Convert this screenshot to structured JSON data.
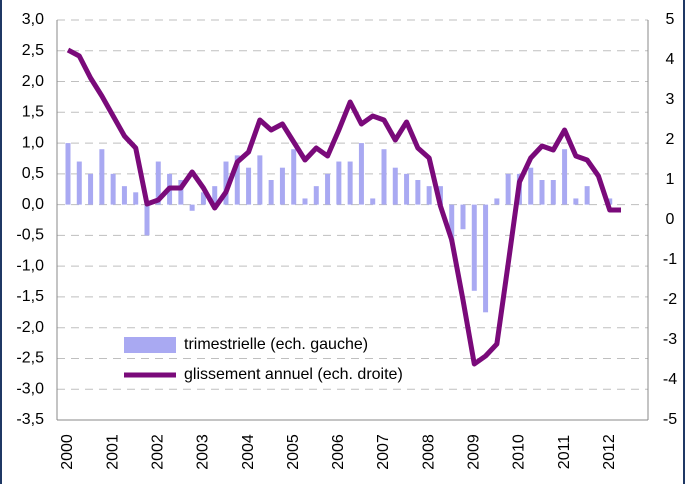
{
  "chart_data": {
    "type": "bar-line",
    "categories": [
      "2000",
      null,
      null,
      null,
      "2001",
      null,
      null,
      null,
      "2002",
      null,
      null,
      null,
      "2003",
      null,
      null,
      null,
      "2004",
      null,
      null,
      null,
      "2005",
      null,
      null,
      null,
      "2006",
      null,
      null,
      null,
      "2007",
      null,
      null,
      null,
      "2008",
      null,
      null,
      null,
      "2009",
      null,
      null,
      null,
      "2010",
      null,
      null,
      null,
      "2011",
      null,
      null,
      null,
      "2012",
      null
    ],
    "series": [
      {
        "name": "trimestrielle (ech. gauche)",
        "type": "bar",
        "color": "#a9a9f2",
        "values": [
          1.0,
          0.7,
          0.5,
          0.9,
          0.5,
          0.3,
          0.2,
          -0.5,
          0.7,
          0.5,
          0.4,
          -0.1,
          0.2,
          0.3,
          0.7,
          0.8,
          0.6,
          0.8,
          0.4,
          0.6,
          0.9,
          0.1,
          0.3,
          0.5,
          0.7,
          0.7,
          1.0,
          0.1,
          0.9,
          0.6,
          0.5,
          0.4,
          0.3,
          0.3,
          -0.6,
          -0.4,
          -1.4,
          -1.75,
          0.1,
          0.5,
          0.5,
          0.6,
          0.4,
          0.4,
          0.9,
          0.1,
          0.3,
          0.0,
          0.1,
          0.0
        ]
      },
      {
        "name": "glissement annuel (ech. droite)",
        "type": "line",
        "axis": "y2",
        "color": "#7a0a7a",
        "values": [
          4.25,
          4.1,
          3.55,
          3.1,
          2.6,
          2.1,
          1.8,
          0.4,
          0.5,
          0.8,
          0.8,
          1.2,
          0.8,
          0.3,
          0.7,
          1.45,
          1.7,
          2.5,
          2.25,
          2.4,
          1.95,
          1.5,
          1.8,
          1.6,
          2.25,
          2.95,
          2.4,
          2.6,
          2.5,
          2.0,
          2.45,
          1.8,
          1.55,
          0.35,
          -0.5,
          -2.0,
          -3.6,
          -3.4,
          -3.1,
          -1.1,
          0.95,
          1.55,
          1.85,
          1.75,
          2.25,
          1.6,
          1.5,
          1.1,
          0.25,
          0.25
        ]
      }
    ],
    "ylim": [
      -3.5,
      3.0
    ],
    "yticks": [
      {
        "value": 3.0,
        "label": "3,0"
      },
      {
        "value": 2.5,
        "label": "2,5"
      },
      {
        "value": 2.0,
        "label": "2,0"
      },
      {
        "value": 1.5,
        "label": "1,5"
      },
      {
        "value": 1.0,
        "label": "1,0"
      },
      {
        "value": 0.5,
        "label": "0,5"
      },
      {
        "value": 0.0,
        "label": "0,0"
      },
      {
        "value": -0.5,
        "label": "-0,5"
      },
      {
        "value": -1.0,
        "label": "-1,0"
      },
      {
        "value": -1.5,
        "label": "-1,5"
      },
      {
        "value": -2.0,
        "label": "-2,0"
      },
      {
        "value": -2.5,
        "label": "-2,5"
      },
      {
        "value": -3.0,
        "label": "-3,0"
      },
      {
        "value": -3.5,
        "label": "-3,5"
      }
    ],
    "y2lim": [
      -5,
      5
    ],
    "y2ticks": [
      5,
      4,
      3,
      2,
      1,
      0,
      -1,
      -2,
      -3,
      -4,
      -5
    ],
    "grid": true
  }
}
